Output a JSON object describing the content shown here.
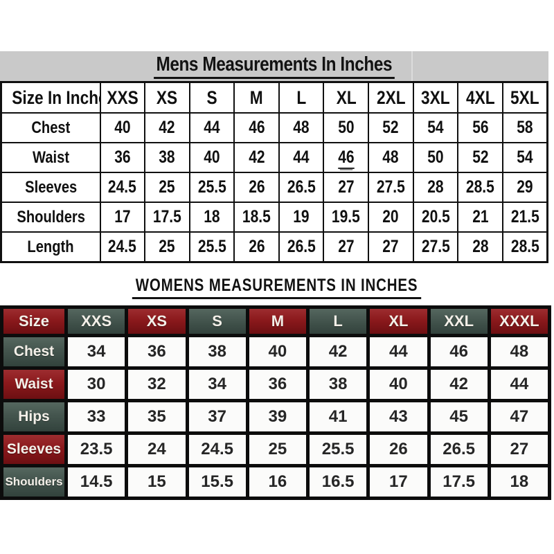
{
  "colors": {
    "band_gray": "#c9c9c9",
    "ink": "#121212",
    "maroon": "#8b191c",
    "maroon_light": "#9d2d30",
    "maroon_dark": "#6d0f12",
    "green": "#44554e",
    "green_light": "#55675f",
    "green_dark": "#32423c",
    "table_black": "#0c0c0c",
    "cell_white": "#fbfbfa"
  },
  "mens_table": {
    "title": "Mens Measurements In Inches",
    "header": [
      "Size In Inches",
      "XXS",
      "XS",
      "S",
      "M",
      "L",
      "XL",
      "2XL",
      "3XL",
      "4XL",
      "5XL"
    ],
    "rows": [
      {
        "label": "Chest",
        "values": [
          "40",
          "42",
          "44",
          "46",
          "48",
          "50",
          "52",
          "54",
          "56",
          "58"
        ]
      },
      {
        "label": "Waist",
        "values": [
          "36",
          "38",
          "40",
          "42",
          "44",
          "46",
          "48",
          "50",
          "52",
          "54"
        ],
        "underline_value_index": 5
      },
      {
        "label": "Sleeves",
        "values": [
          "24.5",
          "25",
          "25.5",
          "26",
          "26.5",
          "27",
          "27.5",
          "28",
          "28.5",
          "29"
        ]
      },
      {
        "label": "Shoulders",
        "values": [
          "17",
          "17.5",
          "18",
          "18.5",
          "19",
          "19.5",
          "20",
          "20.5",
          "21",
          "21.5"
        ]
      },
      {
        "label": "Length",
        "values": [
          "24.5",
          "25",
          "25.5",
          "26",
          "26.5",
          "27",
          "27",
          "27.5",
          "28",
          "28.5"
        ]
      }
    ]
  },
  "womens_table": {
    "title": "WOMENS MEASUREMENTS IN INCHES",
    "header": [
      "Size",
      "XXS",
      "XS",
      "S",
      "M",
      "L",
      "XL",
      "XXL",
      "XXXL"
    ],
    "rows": [
      {
        "label": "Chest",
        "values": [
          "34",
          "36",
          "38",
          "40",
          "42",
          "44",
          "46",
          "48"
        ]
      },
      {
        "label": "Waist",
        "values": [
          "30",
          "32",
          "34",
          "36",
          "38",
          "40",
          "42",
          "44"
        ]
      },
      {
        "label": "Hips",
        "values": [
          "33",
          "35",
          "37",
          "39",
          "41",
          "43",
          "45",
          "47"
        ]
      },
      {
        "label": "Sleeves",
        "values": [
          "23.5",
          "24",
          "24.5",
          "25",
          "25.5",
          "26",
          "26.5",
          "27"
        ]
      },
      {
        "label": "Shoulders",
        "values": [
          "14.5",
          "15",
          "15.5",
          "16",
          "16.5",
          "17",
          "17.5",
          "18"
        ]
      }
    ]
  }
}
